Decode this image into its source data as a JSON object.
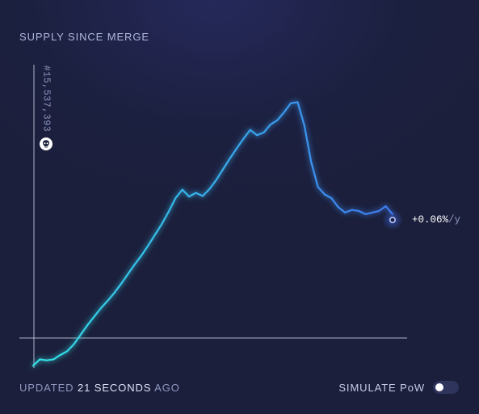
{
  "header": {
    "title": "SUPPLY SINCE MERGE"
  },
  "marker": {
    "block_label": "#15,537,393",
    "icon": "skull-icon"
  },
  "end_value": {
    "value": "+0.06%",
    "unit": "/y"
  },
  "footer": {
    "updated_prefix": "UPDATED",
    "updated_amount": "21 SECONDS",
    "updated_suffix": "AGO",
    "simulate_label": "SIMULATE PoW",
    "simulate_pow_on": false
  },
  "colors": {
    "background": "#1b1f3b",
    "line_start": "#31e2e6",
    "line_end": "#3d7bf2",
    "axis": "#c8cce0",
    "toggle_track": "#2e345c"
  },
  "chart_data": {
    "type": "line",
    "title": "SUPPLY SINCE MERGE",
    "xlabel": "",
    "ylabel": "",
    "grid": false,
    "series": [
      {
        "values": [
          -0.52,
          -0.4,
          -0.42,
          -0.4,
          -0.32,
          -0.25,
          -0.12,
          0.06,
          0.24,
          0.4,
          0.56,
          0.7,
          0.85,
          1.02,
          1.2,
          1.38,
          1.55,
          1.74,
          1.94,
          2.14,
          2.37,
          2.62,
          2.78,
          2.65,
          2.72,
          2.66,
          2.79,
          2.96,
          3.16,
          3.36,
          3.55,
          3.73,
          3.9,
          3.8,
          3.85,
          4.0,
          4.08,
          4.23,
          4.4,
          4.42,
          3.98,
          3.3,
          2.83,
          2.69,
          2.62,
          2.45,
          2.35,
          2.4,
          2.38,
          2.32,
          2.35,
          2.38,
          2.47,
          2.32
        ]
      }
    ],
    "annotations": [
      {
        "text": "#15,537,393",
        "type": "vertical-marker",
        "at": "start"
      },
      {
        "text": "+0.06%/y",
        "type": "end-label"
      }
    ]
  }
}
